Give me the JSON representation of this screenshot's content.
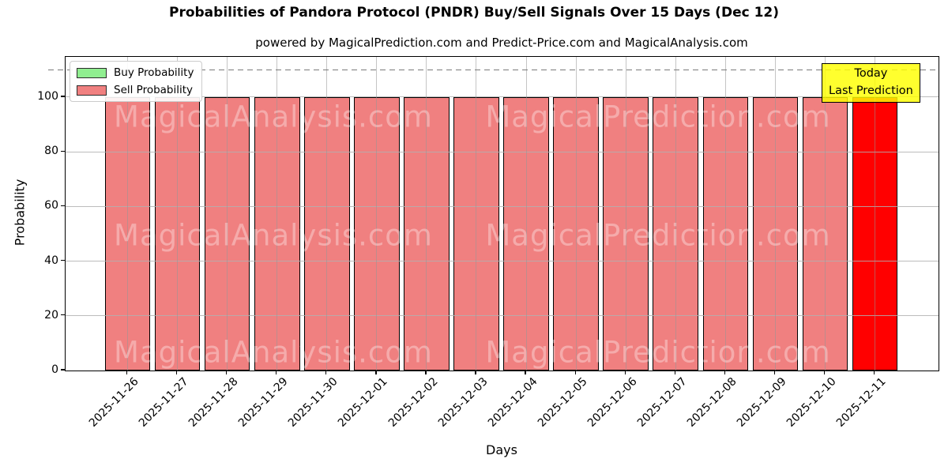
{
  "title": "Probabilities of Pandora Protocol (PNDR) Buy/Sell Signals Over 15 Days (Dec 12)",
  "subtitle": "powered by MagicalPrediction.com and Predict-Price.com and MagicalAnalysis.com",
  "axes": {
    "xlabel": "Days",
    "ylabel": "Probability",
    "y_ticks": [
      0,
      20,
      40,
      60,
      80,
      100
    ]
  },
  "legend": [
    {
      "label": "Buy Probability",
      "color": "#90ee90"
    },
    {
      "label": "Sell Probability",
      "color": "#f08080"
    }
  ],
  "annotation": {
    "line1": "Today",
    "line2": "Last Prediction",
    "bg_color": "#ffff00"
  },
  "watermark": {
    "left_text": "MagicalAnalysis.com",
    "right_text": "MagicalPrediction.com"
  },
  "chart_data": {
    "type": "bar",
    "title": "Probabilities of Pandora Protocol (PNDR) Buy/Sell Signals Over 15 Days (Dec 12)",
    "xlabel": "Days",
    "ylabel": "Probability",
    "ylim": [
      0,
      114.7
    ],
    "grid": true,
    "legend_position": "upper left",
    "categories": [
      "2025-11-26",
      "2025-11-27",
      "2025-11-28",
      "2025-11-29",
      "2025-11-30",
      "2025-12-01",
      "2025-12-02",
      "2025-12-03",
      "2025-12-04",
      "2025-12-05",
      "2025-12-06",
      "2025-12-07",
      "2025-12-08",
      "2025-12-09",
      "2025-12-10",
      "2025-12-11"
    ],
    "series": [
      {
        "name": "Buy Probability",
        "color": "#90ee90",
        "values": [
          0,
          0,
          0,
          0,
          0,
          0,
          0,
          0,
          0,
          0,
          0,
          0,
          0,
          0,
          0,
          0
        ]
      },
      {
        "name": "Sell Probability",
        "color": "#f08080",
        "values": [
          100,
          100,
          100,
          100,
          100,
          100,
          100,
          100,
          100,
          100,
          100,
          100,
          100,
          100,
          100,
          100
        ]
      }
    ],
    "highlight": {
      "index": 15,
      "color": "#ff0000",
      "meaning": "Today / Last Prediction"
    },
    "dashed_line_y": 110
  }
}
